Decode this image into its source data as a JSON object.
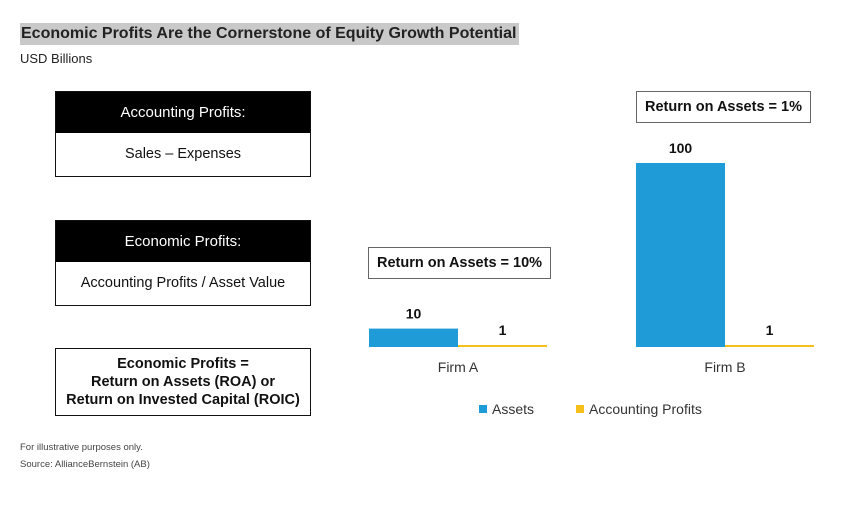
{
  "title": "Economic Profits Are the Cornerstone of Equity Growth Potential",
  "subtitle": "USD Billions",
  "definitions": {
    "accounting": {
      "head": "Accounting Profits:",
      "body": "Sales – Expenses"
    },
    "economic": {
      "head": "Economic Profits:",
      "body": "Accounting Profits / Asset Value"
    },
    "summary": {
      "line1": "Economic Profits =",
      "line2": "Return on Assets (ROA) or",
      "line3": "Return on Invested Capital (ROIC)"
    }
  },
  "chart_data": {
    "type": "bar",
    "categories": [
      "Firm A",
      "Firm B"
    ],
    "series": [
      {
        "name": "Assets",
        "values": [
          10,
          100
        ],
        "color": "#1f9bd7"
      },
      {
        "name": "Accounting Profits",
        "values": [
          1,
          1
        ],
        "color": "#f5c01c"
      }
    ],
    "data_labels": [
      [
        "10",
        "1"
      ],
      [
        "100",
        "1"
      ]
    ],
    "annotations": [
      "Return on Assets = 10%",
      "Return on Assets = 1%"
    ],
    "ylim": [
      0,
      100
    ],
    "grid": false,
    "legend_position": "bottom"
  },
  "footnotes": [
    "For illustrative purposes only.",
    "Source: AllianceBernstein (AB)"
  ]
}
